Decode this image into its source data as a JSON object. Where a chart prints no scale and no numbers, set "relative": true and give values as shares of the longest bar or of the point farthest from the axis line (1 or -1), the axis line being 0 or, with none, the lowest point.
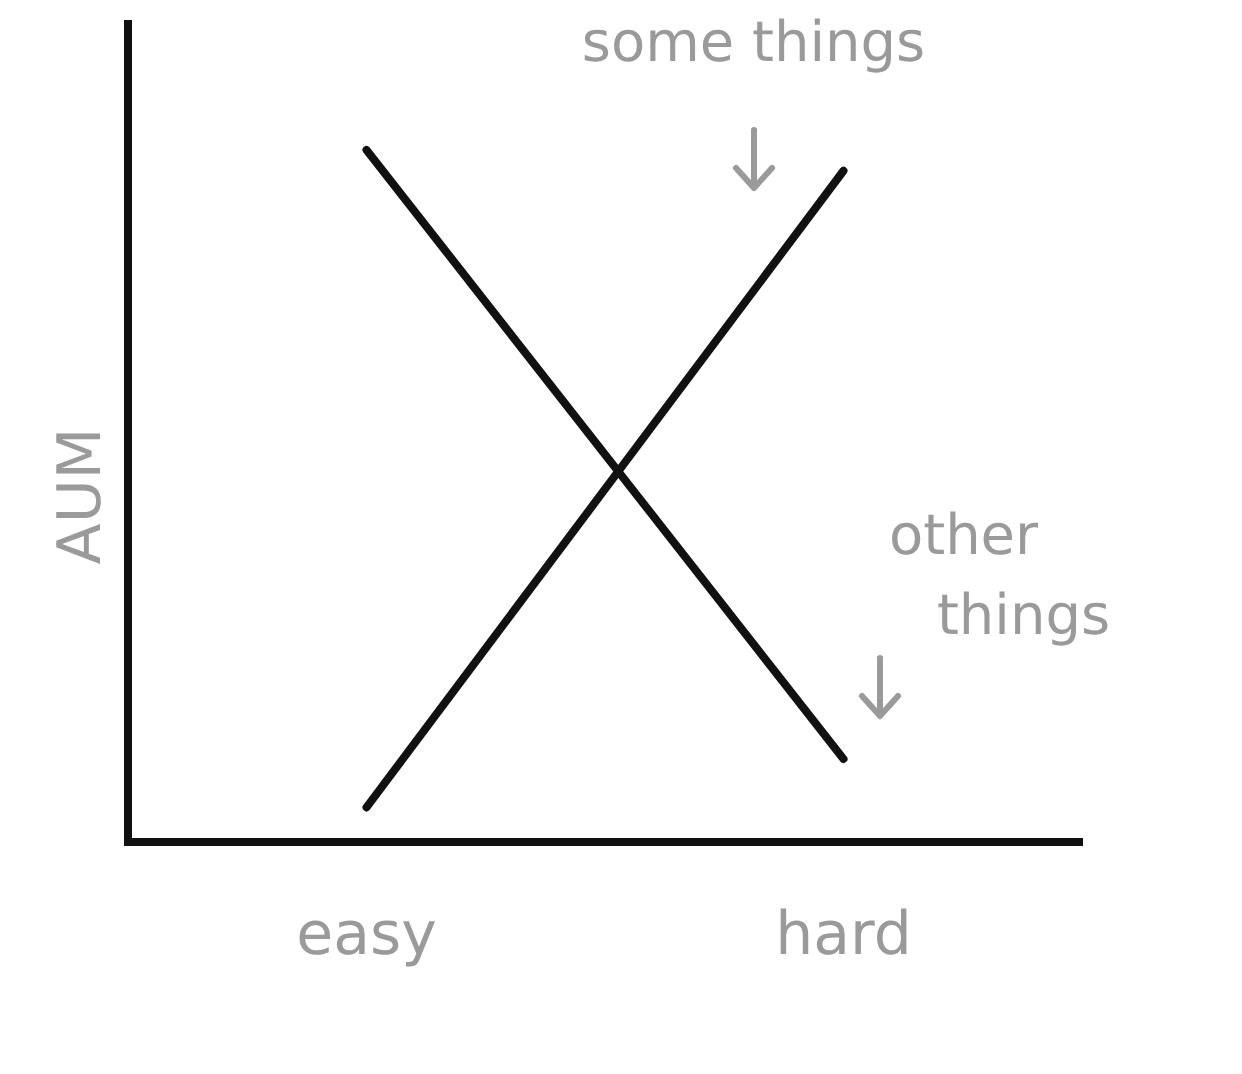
{
  "chart_data": {
    "type": "line",
    "relative": true,
    "ylabel": "AUM",
    "categories": [
      "easy",
      "hard"
    ],
    "series": [
      {
        "name": "some things",
        "color": "#111111",
        "values": [
          0.05,
          0.97
        ]
      },
      {
        "name": "other things",
        "color": "#111111",
        "values": [
          1,
          0.12
        ]
      }
    ],
    "legend": false,
    "grid": false,
    "marker": "none",
    "line_style": "solid"
  }
}
